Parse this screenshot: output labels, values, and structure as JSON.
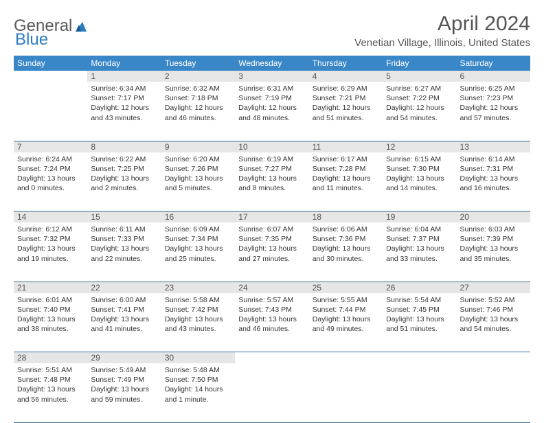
{
  "brand": {
    "text1": "General",
    "text2": "Blue"
  },
  "title": "April 2024",
  "location": "Venetian Village, Illinois, United States",
  "colors": {
    "header_bg": "#3a87c8",
    "header_text": "#ffffff",
    "daynum_bg": "#e6e6e6",
    "border": "#3a6a9a",
    "brand_gray": "#5a5a5a",
    "brand_blue": "#2b7bbf"
  },
  "weekdays": [
    "Sunday",
    "Monday",
    "Tuesday",
    "Wednesday",
    "Thursday",
    "Friday",
    "Saturday"
  ],
  "weeks": [
    {
      "nums": [
        "",
        "1",
        "2",
        "3",
        "4",
        "5",
        "6"
      ],
      "cells": [
        "",
        "Sunrise: 6:34 AM\nSunset: 7:17 PM\nDaylight: 12 hours and 43 minutes.",
        "Sunrise: 6:32 AM\nSunset: 7:18 PM\nDaylight: 12 hours and 46 minutes.",
        "Sunrise: 6:31 AM\nSunset: 7:19 PM\nDaylight: 12 hours and 48 minutes.",
        "Sunrise: 6:29 AM\nSunset: 7:21 PM\nDaylight: 12 hours and 51 minutes.",
        "Sunrise: 6:27 AM\nSunset: 7:22 PM\nDaylight: 12 hours and 54 minutes.",
        "Sunrise: 6:25 AM\nSunset: 7:23 PM\nDaylight: 12 hours and 57 minutes."
      ]
    },
    {
      "nums": [
        "7",
        "8",
        "9",
        "10",
        "11",
        "12",
        "13"
      ],
      "cells": [
        "Sunrise: 6:24 AM\nSunset: 7:24 PM\nDaylight: 13 hours and 0 minutes.",
        "Sunrise: 6:22 AM\nSunset: 7:25 PM\nDaylight: 13 hours and 2 minutes.",
        "Sunrise: 6:20 AM\nSunset: 7:26 PM\nDaylight: 13 hours and 5 minutes.",
        "Sunrise: 6:19 AM\nSunset: 7:27 PM\nDaylight: 13 hours and 8 minutes.",
        "Sunrise: 6:17 AM\nSunset: 7:28 PM\nDaylight: 13 hours and 11 minutes.",
        "Sunrise: 6:15 AM\nSunset: 7:30 PM\nDaylight: 13 hours and 14 minutes.",
        "Sunrise: 6:14 AM\nSunset: 7:31 PM\nDaylight: 13 hours and 16 minutes."
      ]
    },
    {
      "nums": [
        "14",
        "15",
        "16",
        "17",
        "18",
        "19",
        "20"
      ],
      "cells": [
        "Sunrise: 6:12 AM\nSunset: 7:32 PM\nDaylight: 13 hours and 19 minutes.",
        "Sunrise: 6:11 AM\nSunset: 7:33 PM\nDaylight: 13 hours and 22 minutes.",
        "Sunrise: 6:09 AM\nSunset: 7:34 PM\nDaylight: 13 hours and 25 minutes.",
        "Sunrise: 6:07 AM\nSunset: 7:35 PM\nDaylight: 13 hours and 27 minutes.",
        "Sunrise: 6:06 AM\nSunset: 7:36 PM\nDaylight: 13 hours and 30 minutes.",
        "Sunrise: 6:04 AM\nSunset: 7:37 PM\nDaylight: 13 hours and 33 minutes.",
        "Sunrise: 6:03 AM\nSunset: 7:39 PM\nDaylight: 13 hours and 35 minutes."
      ]
    },
    {
      "nums": [
        "21",
        "22",
        "23",
        "24",
        "25",
        "26",
        "27"
      ],
      "cells": [
        "Sunrise: 6:01 AM\nSunset: 7:40 PM\nDaylight: 13 hours and 38 minutes.",
        "Sunrise: 6:00 AM\nSunset: 7:41 PM\nDaylight: 13 hours and 41 minutes.",
        "Sunrise: 5:58 AM\nSunset: 7:42 PM\nDaylight: 13 hours and 43 minutes.",
        "Sunrise: 5:57 AM\nSunset: 7:43 PM\nDaylight: 13 hours and 46 minutes.",
        "Sunrise: 5:55 AM\nSunset: 7:44 PM\nDaylight: 13 hours and 49 minutes.",
        "Sunrise: 5:54 AM\nSunset: 7:45 PM\nDaylight: 13 hours and 51 minutes.",
        "Sunrise: 5:52 AM\nSunset: 7:46 PM\nDaylight: 13 hours and 54 minutes."
      ]
    },
    {
      "nums": [
        "28",
        "29",
        "30",
        "",
        "",
        "",
        ""
      ],
      "cells": [
        "Sunrise: 5:51 AM\nSunset: 7:48 PM\nDaylight: 13 hours and 56 minutes.",
        "Sunrise: 5:49 AM\nSunset: 7:49 PM\nDaylight: 13 hours and 59 minutes.",
        "Sunrise: 5:48 AM\nSunset: 7:50 PM\nDaylight: 14 hours and 1 minute.",
        "",
        "",
        "",
        ""
      ]
    }
  ]
}
